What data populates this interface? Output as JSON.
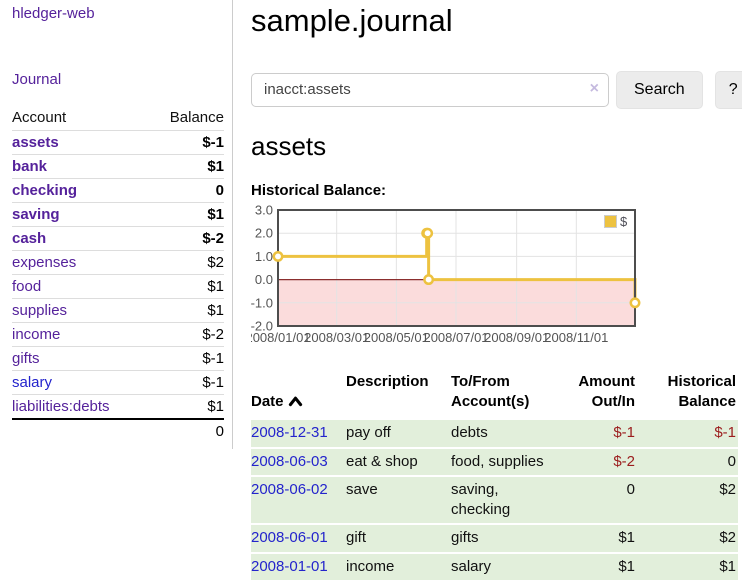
{
  "colors": {
    "accent_purple": "#55229b",
    "link_blue": "#2424cc",
    "negative_strong": "#9b1d1d",
    "negative_soft": "#c47878",
    "row_green": "#e2efdb",
    "chart_line": "#edc240",
    "chart_negative_fill": "#fbdcdc",
    "chart_zero_line": "#8b2e2e",
    "chart_border": "#4d4d4d",
    "chart_grid": "#e3e3e3",
    "chart_tick_text": "#545454"
  },
  "sidebar": {
    "brand": "hledger-web",
    "journal_link": "Journal",
    "accounts": {
      "headers": {
        "account": "Account",
        "balance": "Balance"
      },
      "rows": [
        {
          "name": "assets",
          "depth": 1,
          "bold": true,
          "balance": "$-1",
          "neg": "strong"
        },
        {
          "name": "bank",
          "depth": 2,
          "bold": true,
          "balance": "$1"
        },
        {
          "name": "checking",
          "depth": 3,
          "bold": true,
          "balance": "0"
        },
        {
          "name": "saving",
          "depth": 3,
          "bold": true,
          "balance": "$1"
        },
        {
          "name": "cash",
          "depth": 2,
          "bold": true,
          "balance": "$-2",
          "neg": "strong"
        },
        {
          "name": "expenses",
          "depth": 1,
          "bold": false,
          "balance": "$2"
        },
        {
          "name": "food",
          "depth": 2,
          "bold": false,
          "balance": "$1"
        },
        {
          "name": "supplies",
          "depth": 2,
          "bold": false,
          "balance": "$1"
        },
        {
          "name": "income",
          "depth": 1,
          "bold": false,
          "balance": "$-2",
          "neg": "soft"
        },
        {
          "name": "gifts",
          "depth": 2,
          "bold": false,
          "balance": "$-1",
          "neg": "soft"
        },
        {
          "name": "salary",
          "depth": 2,
          "bold": false,
          "balance": "$-1",
          "neg": "soft",
          "link_color": "blue"
        },
        {
          "name": "liabilities:debts",
          "depth": 1,
          "bold": false,
          "balance": "$1"
        }
      ],
      "total": "0"
    }
  },
  "main": {
    "title": "sample.journal",
    "search": {
      "value": "inacct:assets",
      "clear_icon": "×",
      "search_button": "Search",
      "help_button": "?"
    },
    "account_heading": "assets",
    "chart_label": "Historical Balance:"
  },
  "chart_data": {
    "type": "line",
    "title": "Historical Balance:",
    "step": true,
    "grid": true,
    "legend_position": "top-right",
    "series": [
      {
        "name": "$",
        "color": "#edc240",
        "points": [
          {
            "date": "2008-01-01",
            "day": 0,
            "value": 1
          },
          {
            "date": "2008-06-01",
            "day": 152,
            "value": 2
          },
          {
            "date": "2008-06-02",
            "day": 153,
            "value": 2
          },
          {
            "date": "2008-06-03",
            "day": 154,
            "value": 0
          },
          {
            "date": "2008-12-31",
            "day": 365,
            "value": -1
          }
        ]
      }
    ],
    "ylim": [
      -2,
      3
    ],
    "xrange_days": [
      0,
      365
    ],
    "yticks": [
      {
        "label": "3.0",
        "value": 3
      },
      {
        "label": "2.0",
        "value": 2
      },
      {
        "label": "1.0",
        "value": 1
      },
      {
        "label": "0.0",
        "value": 0
      },
      {
        "label": "-1.0",
        "value": -1
      },
      {
        "label": "-2.0",
        "value": -2
      }
    ],
    "xticks": [
      {
        "label": "2008/01/01",
        "day": 0
      },
      {
        "label": "2008/03/01",
        "day": 60
      },
      {
        "label": "2008/05/01",
        "day": 121
      },
      {
        "label": "2008/07/01",
        "day": 182
      },
      {
        "label": "2008/09/01",
        "day": 244
      },
      {
        "label": "2008/11/01",
        "day": 305
      }
    ],
    "negative_region_shaded": true,
    "zero_line": true
  },
  "register": {
    "headers": {
      "date": "Date",
      "description": "Description",
      "accounts": "To/From\nAccount(s)",
      "amount": "Amount\nOut/In",
      "balance": "Historical\nBalance"
    },
    "rows": [
      {
        "date": "2008-12-31",
        "description": "pay off",
        "accounts": "debts",
        "amount": "$-1",
        "amount_neg": true,
        "balance": "$-1",
        "balance_neg": true
      },
      {
        "date": "2008-06-03",
        "description": "eat & shop",
        "accounts": "food, supplies",
        "amount": "$-2",
        "amount_neg": true,
        "balance": "0",
        "balance_neg": false
      },
      {
        "date": "2008-06-02",
        "description": "save",
        "accounts": "saving,\nchecking",
        "amount": "0",
        "amount_neg": false,
        "balance": "$2",
        "balance_neg": false
      },
      {
        "date": "2008-06-01",
        "description": "gift",
        "accounts": "gifts",
        "amount": "$1",
        "amount_neg": false,
        "balance": "$2",
        "balance_neg": false
      },
      {
        "date": "2008-01-01",
        "description": "income",
        "accounts": "salary",
        "amount": "$1",
        "amount_neg": false,
        "balance": "$1",
        "balance_neg": false
      }
    ]
  }
}
